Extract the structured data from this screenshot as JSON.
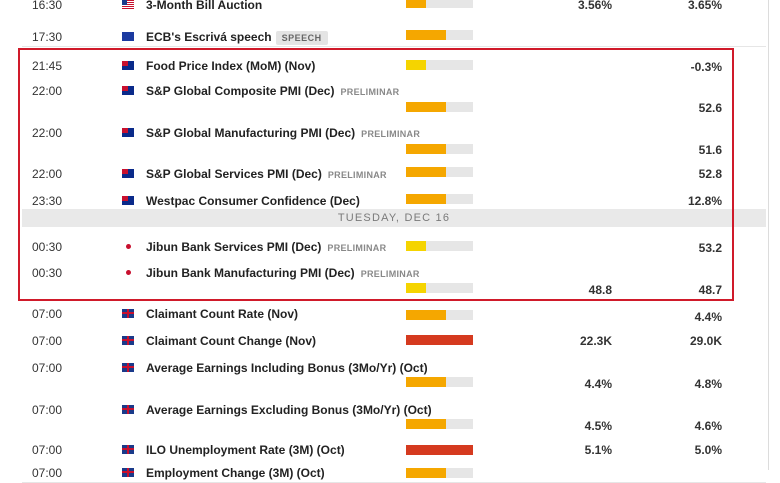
{
  "rows": [
    {
      "time": "16:30",
      "flag": "us",
      "name": "3-Month Bill Auction",
      "prelim": "",
      "tag": "",
      "impact": 0.3,
      "color": "#f5a700",
      "v1": "3.56%",
      "v2": "3.65%"
    },
    {
      "time": "17:30",
      "flag": "eu",
      "name": "ECB's Escrivá speech",
      "prelim": "",
      "tag": "SPEECH",
      "impact": 0.6,
      "color": "#f5a700",
      "v1": "",
      "v2": ""
    },
    {
      "time": "21:45",
      "flag": "au",
      "name": "Food Price Index (MoM) (Nov)",
      "prelim": "",
      "tag": "",
      "impact": 0.3,
      "color": "#f5d400",
      "v1": "",
      "v2": "-0.3%"
    },
    {
      "time": "22:00",
      "flag": "au",
      "name": "S&P Global Composite PMI (Dec)",
      "prelim": "PRELIMINAR",
      "tag": "",
      "impact": 0.6,
      "color": "#f5a700",
      "v1": "",
      "v2": "52.6"
    },
    {
      "time": "22:00",
      "flag": "au",
      "name": "S&P Global Manufacturing PMI (Dec)",
      "prelim": "PRELIMINAR",
      "tag": "",
      "impact": 0.6,
      "color": "#f5a700",
      "v1": "",
      "v2": "51.6"
    },
    {
      "time": "22:00",
      "flag": "au",
      "name": "S&P Global Services PMI (Dec)",
      "prelim": "PRELIMINAR",
      "tag": "",
      "impact": 0.6,
      "color": "#f5a700",
      "v1": "",
      "v2": "52.8"
    },
    {
      "time": "23:30",
      "flag": "au",
      "name": "Westpac Consumer Confidence (Dec)",
      "prelim": "",
      "tag": "",
      "impact": 0.6,
      "color": "#f5a700",
      "v1": "",
      "v2": "12.8%"
    },
    {
      "time": "00:30",
      "flag": "jp",
      "name": "Jibun Bank Services PMI (Dec)",
      "prelim": "PRELIMINAR",
      "tag": "",
      "impact": 0.3,
      "color": "#f5d400",
      "v1": "",
      "v2": "53.2"
    },
    {
      "time": "00:30",
      "flag": "jp",
      "name": "Jibun Bank Manufacturing PMI (Dec)",
      "prelim": "PRELIMINAR",
      "tag": "",
      "impact": 0.3,
      "color": "#f5d400",
      "v1": "48.8",
      "v2": "48.7"
    },
    {
      "time": "07:00",
      "flag": "uk",
      "name": "Claimant Count Rate (Nov)",
      "prelim": "",
      "tag": "",
      "impact": 0.6,
      "color": "#f5a700",
      "v1": "",
      "v2": "4.4%"
    },
    {
      "time": "07:00",
      "flag": "uk",
      "name": "Claimant Count Change (Nov)",
      "prelim": "",
      "tag": "",
      "impact": 1.0,
      "color": "#d53a1f",
      "v1": "22.3K",
      "v2": "29.0K"
    },
    {
      "time": "07:00",
      "flag": "uk",
      "name": "Average Earnings Including Bonus (3Mo/Yr) (Oct)",
      "prelim": "",
      "tag": "",
      "impact": 0.6,
      "color": "#f5a700",
      "v1": "4.4%",
      "v2": "4.8%"
    },
    {
      "time": "07:00",
      "flag": "uk",
      "name": "Average Earnings Excluding Bonus (3Mo/Yr) (Oct)",
      "prelim": "",
      "tag": "",
      "impact": 0.6,
      "color": "#f5a700",
      "v1": "4.5%",
      "v2": "4.6%"
    },
    {
      "time": "07:00",
      "flag": "uk",
      "name": "ILO Unemployment Rate (3M) (Oct)",
      "prelim": "",
      "tag": "",
      "impact": 1.0,
      "color": "#d53a1f",
      "v1": "5.1%",
      "v2": "5.0%"
    },
    {
      "time": "07:00",
      "flag": "uk",
      "name": "Employment Change (3M) (Oct)",
      "prelim": "",
      "tag": "",
      "impact": 0.6,
      "color": "#f5a700",
      "v1": "",
      "v2": ""
    }
  ],
  "separator": {
    "label": "TUESDAY, DEC 16"
  }
}
